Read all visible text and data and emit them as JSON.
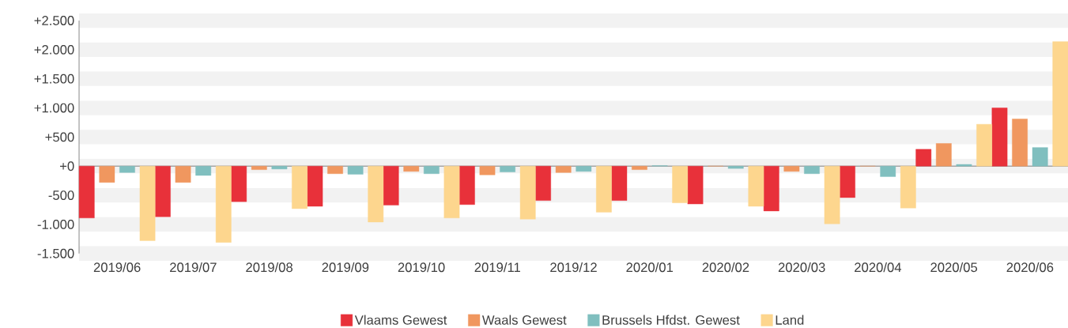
{
  "chart_data": {
    "type": "bar",
    "categories": [
      "2019/06",
      "2019/07",
      "2019/08",
      "2019/09",
      "2019/10",
      "2019/11",
      "2019/12",
      "2020/01",
      "2020/02",
      "2020/03",
      "2020/04",
      "2020/05",
      "2020/06"
    ],
    "series": [
      {
        "name": "Vlaams Gewest",
        "color": "#e8313a",
        "values": [
          -890,
          -870,
          -610,
          -690,
          -670,
          -660,
          -590,
          -590,
          -650,
          -770,
          -540,
          290,
          1000
        ]
      },
      {
        "name": "Waals Gewest",
        "color": "#f0975f",
        "values": [
          -280,
          -280,
          -60,
          -130,
          -90,
          -150,
          -110,
          -60,
          0,
          -90,
          0,
          390,
          810
        ]
      },
      {
        "name": "Brussels Hfdst. Gewest",
        "color": "#80bfbf",
        "values": [
          -110,
          -160,
          -50,
          -140,
          -130,
          -100,
          -90,
          10,
          -40,
          -130,
          -180,
          30,
          320
        ]
      },
      {
        "name": "Land",
        "color": "#fdd68e",
        "values": [
          -1280,
          -1310,
          -730,
          -960,
          -890,
          -910,
          -790,
          -630,
          -690,
          -990,
          -720,
          720,
          2140
        ]
      }
    ],
    "ylim": [
      -1500,
      2500
    ],
    "yticks": [
      {
        "value": -1500,
        "label": "-1.500"
      },
      {
        "value": -1000,
        "label": "-1.000"
      },
      {
        "value": -500,
        "label": "-500"
      },
      {
        "value": 0,
        "label": "+0"
      },
      {
        "value": 500,
        "label": "+500"
      },
      {
        "value": 1000,
        "label": "+1.000"
      },
      {
        "value": 1500,
        "label": "+1.500"
      },
      {
        "value": 2000,
        "label": "+2.000"
      },
      {
        "value": 2500,
        "label": "+2.500"
      }
    ],
    "grid": "y",
    "legend": "bottom"
  }
}
